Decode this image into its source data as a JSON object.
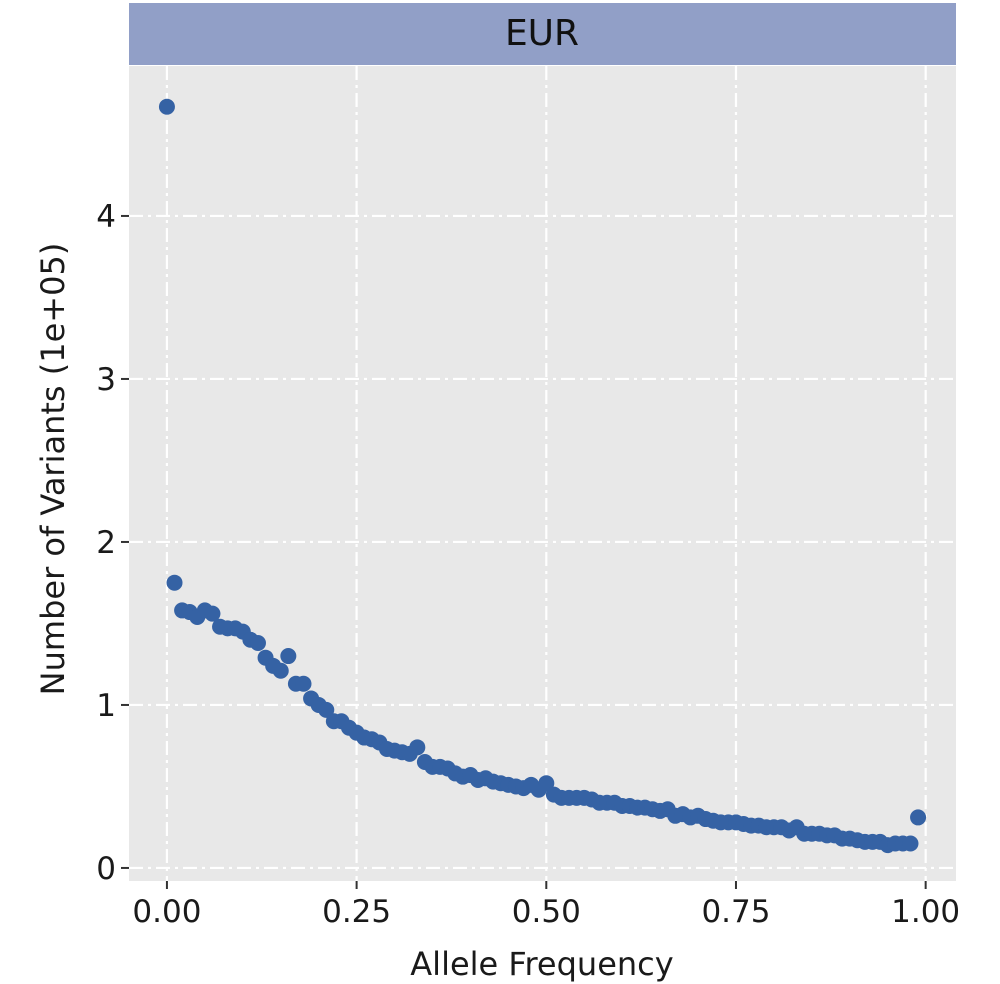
{
  "chart_data": {
    "type": "scatter",
    "facet_label": "EUR",
    "xlabel": "Allele Frequency",
    "ylabel": "Number of Variants (1e+05)",
    "xlim": [
      -0.05,
      1.04
    ],
    "ylim": [
      -0.08,
      4.92
    ],
    "x_ticks": [
      0,
      0.25,
      0.5,
      0.75,
      1
    ],
    "x_tick_labels": [
      "0.00",
      "0.25",
      "0.50",
      "0.75",
      "1.00"
    ],
    "y_ticks": [
      0,
      1,
      2,
      3,
      4
    ],
    "y_tick_labels": [
      "0",
      "1",
      "2",
      "3",
      "4"
    ],
    "grid": true,
    "legend": "none",
    "colors": {
      "panel": "#e8e8e8",
      "grid": "#ffffff",
      "strip": "#919fc7",
      "point": "#3562a4"
    },
    "x": [
      0.0,
      0.01,
      0.02,
      0.03,
      0.04,
      0.05,
      0.06,
      0.07,
      0.08,
      0.09,
      0.1,
      0.11,
      0.12,
      0.13,
      0.14,
      0.15,
      0.16,
      0.17,
      0.18,
      0.19,
      0.2,
      0.21,
      0.22,
      0.23,
      0.24,
      0.25,
      0.26,
      0.27,
      0.28,
      0.29,
      0.3,
      0.31,
      0.32,
      0.33,
      0.34,
      0.35,
      0.36,
      0.37,
      0.38,
      0.39,
      0.4,
      0.41,
      0.42,
      0.43,
      0.44,
      0.45,
      0.46,
      0.47,
      0.48,
      0.49,
      0.5,
      0.51,
      0.52,
      0.53,
      0.54,
      0.55,
      0.56,
      0.57,
      0.58,
      0.59,
      0.6,
      0.61,
      0.62,
      0.63,
      0.64,
      0.65,
      0.66,
      0.67,
      0.68,
      0.69,
      0.7,
      0.71,
      0.72,
      0.73,
      0.74,
      0.75,
      0.76,
      0.77,
      0.78,
      0.79,
      0.8,
      0.81,
      0.82,
      0.83,
      0.84,
      0.85,
      0.86,
      0.87,
      0.88,
      0.89,
      0.9,
      0.91,
      0.92,
      0.93,
      0.94,
      0.95,
      0.96,
      0.97,
      0.98,
      0.99
    ],
    "y": [
      4.67,
      1.75,
      1.58,
      1.57,
      1.54,
      1.58,
      1.56,
      1.48,
      1.47,
      1.47,
      1.45,
      1.4,
      1.38,
      1.29,
      1.24,
      1.21,
      1.3,
      1.13,
      1.13,
      1.04,
      1.0,
      0.97,
      0.9,
      0.9,
      0.86,
      0.83,
      0.8,
      0.79,
      0.77,
      0.73,
      0.72,
      0.71,
      0.7,
      0.74,
      0.65,
      0.62,
      0.62,
      0.61,
      0.58,
      0.56,
      0.57,
      0.54,
      0.55,
      0.53,
      0.52,
      0.51,
      0.5,
      0.49,
      0.51,
      0.48,
      0.52,
      0.45,
      0.43,
      0.43,
      0.43,
      0.43,
      0.42,
      0.4,
      0.4,
      0.4,
      0.38,
      0.38,
      0.37,
      0.37,
      0.36,
      0.35,
      0.36,
      0.32,
      0.33,
      0.31,
      0.32,
      0.3,
      0.29,
      0.28,
      0.28,
      0.28,
      0.27,
      0.26,
      0.26,
      0.25,
      0.25,
      0.25,
      0.23,
      0.25,
      0.21,
      0.21,
      0.21,
      0.2,
      0.2,
      0.18,
      0.18,
      0.17,
      0.16,
      0.16,
      0.16,
      0.14,
      0.15,
      0.15,
      0.15,
      0.31
    ]
  }
}
